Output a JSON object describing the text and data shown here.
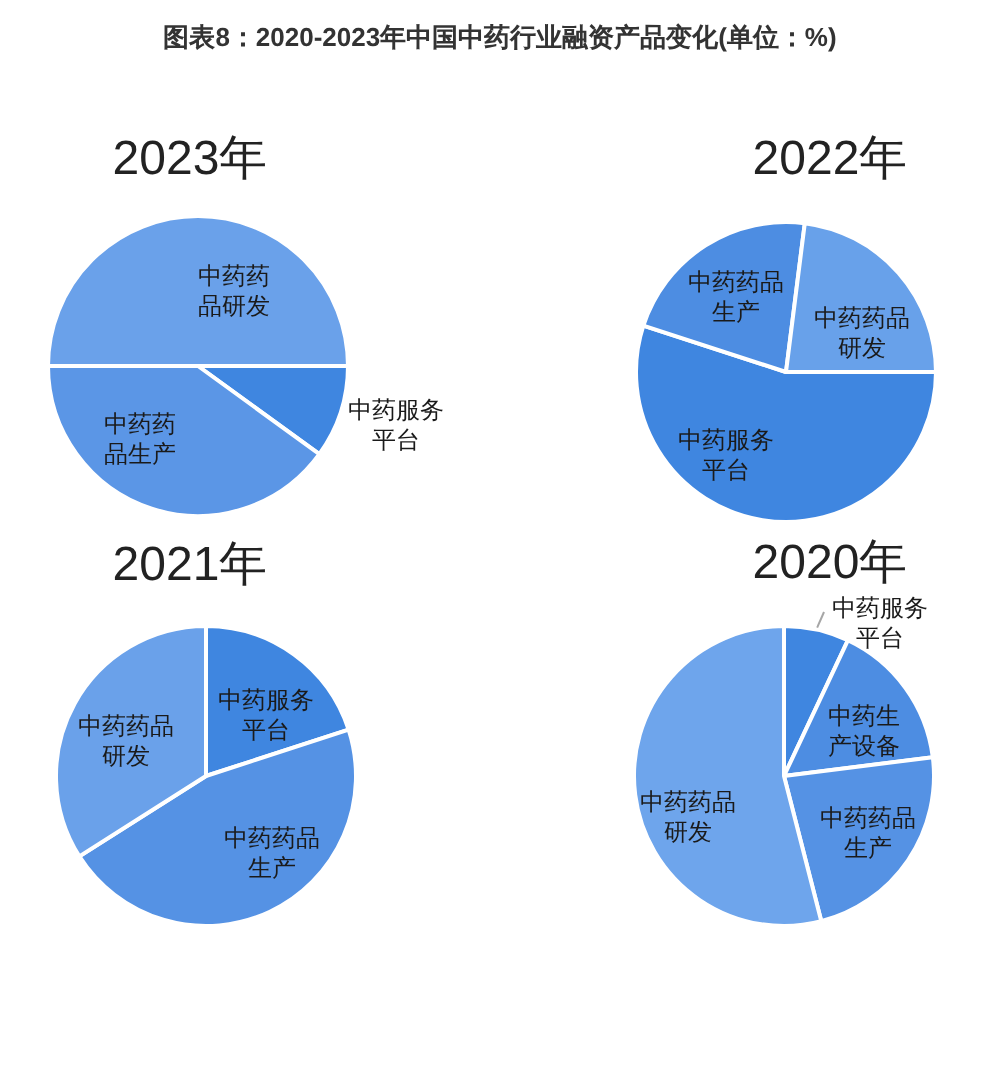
{
  "chart_data": [
    {
      "type": "other",
      "title": "图表8：2020-2023年中国中药行业融资产品变化(单位：%)"
    },
    {
      "type": "pie",
      "title": "2023年",
      "categories": [
        "中药服务平台",
        "中药药品生产",
        "中药药品研发"
      ],
      "values": [
        10,
        40,
        50
      ],
      "colors": [
        "#3f86e0",
        "#5b96e6",
        "#6aa1ea"
      ]
    },
    {
      "type": "pie",
      "title": "2022年",
      "categories": [
        "中药服务平台",
        "中药药品生产",
        "中药药品研发"
      ],
      "values": [
        55,
        22,
        23
      ],
      "colors": [
        "#3f86e0",
        "#4d8de2",
        "#68a1ea"
      ]
    },
    {
      "type": "pie",
      "title": "2021年",
      "categories": [
        "中药服务平台",
        "中药药品生产",
        "中药药品研发"
      ],
      "values": [
        20,
        46,
        34
      ],
      "colors": [
        "#3f86e0",
        "#5592e4",
        "#6aa1ea"
      ]
    },
    {
      "type": "pie",
      "title": "2020年",
      "categories": [
        "中药服务平台",
        "中药生产设备",
        "中药药品生产",
        "中药药品研发"
      ],
      "values": [
        7,
        16,
        23,
        54
      ],
      "colors": [
        "#3f86e0",
        "#4d8de2",
        "#5592e4",
        "#6ea5ec"
      ]
    }
  ]
}
